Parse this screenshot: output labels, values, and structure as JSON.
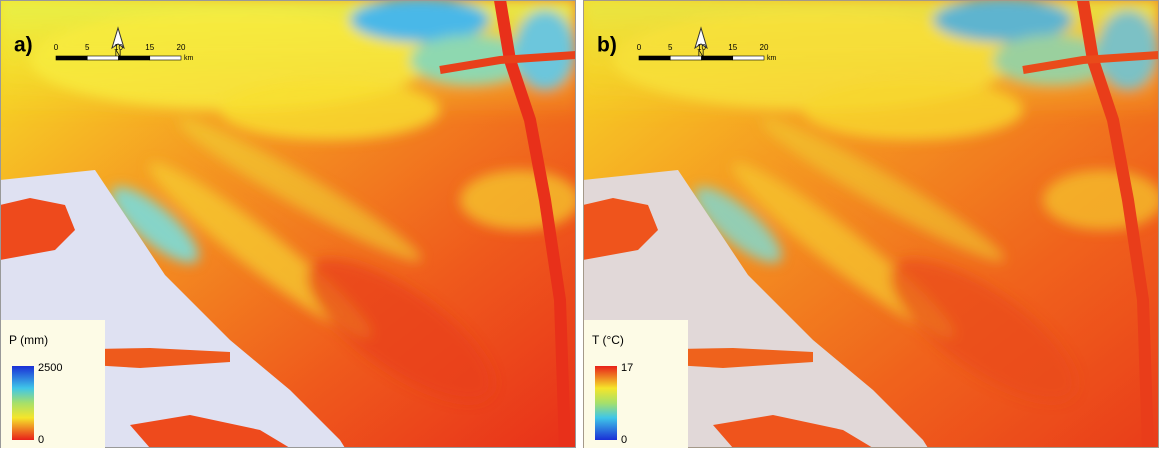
{
  "panels": [
    {
      "label": "a)",
      "north": "N",
      "scale_ticks": [
        0,
        5,
        10,
        15,
        20
      ],
      "scale_unit": "km",
      "legend": {
        "title": "P (mm)",
        "max": 2500,
        "min": 0
      }
    },
    {
      "label": "b)",
      "north": "N",
      "scale_ticks": [
        0,
        5,
        10,
        15,
        20
      ],
      "scale_unit": "km",
      "legend": {
        "title": "T (°C)",
        "max": 17,
        "min": 0
      }
    }
  ]
}
